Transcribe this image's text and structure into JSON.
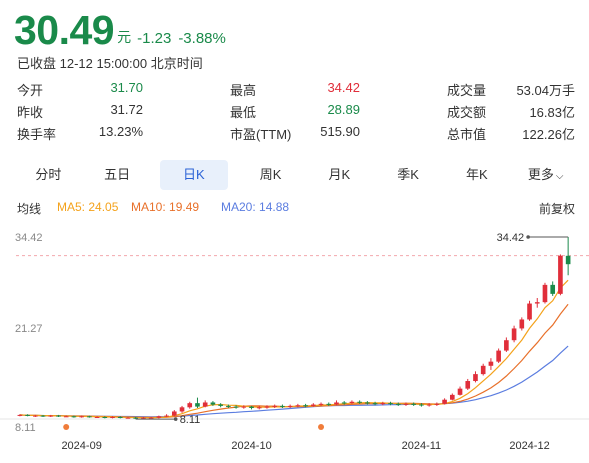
{
  "quote": {
    "price": "30.49",
    "unit": "元",
    "change": "-1.23",
    "change_pct": "-3.88%",
    "status": "已收盘 12-12 15:00:00 北京时间"
  },
  "stats": [
    [
      {
        "label": "今开",
        "value": "31.70",
        "tone": "down"
      },
      {
        "label": "最高",
        "value": "34.42",
        "tone": "up"
      },
      {
        "label": "成交量",
        "value": "53.04万手",
        "tone": "neutral"
      }
    ],
    [
      {
        "label": "昨收",
        "value": "31.72",
        "tone": "neutral"
      },
      {
        "label": "最低",
        "value": "28.89",
        "tone": "down"
      },
      {
        "label": "成交额",
        "value": "16.83亿",
        "tone": "neutral"
      }
    ],
    [
      {
        "label": "换手率",
        "value": "13.23%",
        "tone": "neutral"
      },
      {
        "label": "市盈(TTM)",
        "value": "515.90",
        "tone": "neutral"
      },
      {
        "label": "总市值",
        "value": "122.26亿",
        "tone": "neutral"
      }
    ]
  ],
  "tabs": [
    {
      "label": "分时",
      "active": false
    },
    {
      "label": "五日",
      "active": false
    },
    {
      "label": "日K",
      "active": true
    },
    {
      "label": "周K",
      "active": false
    },
    {
      "label": "月K",
      "active": false
    },
    {
      "label": "季K",
      "active": false
    },
    {
      "label": "年K",
      "active": false
    },
    {
      "label": "更多",
      "active": false,
      "caret": "⌵"
    }
  ],
  "legend": {
    "title": "均线",
    "ma5": "MA5: 24.05",
    "ma10": "MA10: 19.49",
    "ma20": "MA20: 14.88",
    "adjust": "前复权"
  },
  "colors": {
    "up": "#e02e3a",
    "down": "#1a8a4a",
    "ma5": "#f4a21b",
    "ma10": "#e8702a",
    "ma20": "#5b7de0"
  },
  "chart_data": {
    "type": "candlestick",
    "y_ticks": [
      "34.42",
      "21.27",
      "8.11"
    ],
    "ylim": [
      8.11,
      34.42
    ],
    "x_ticks": [
      "2024-09",
      "2024-10",
      "2024-11",
      "2024-12"
    ],
    "annotations": {
      "high": "34.42",
      "low": "8.11"
    },
    "candles": [
      [
        8.6,
        8.7,
        8.5,
        8.8
      ],
      [
        8.7,
        8.6,
        8.5,
        8.8
      ],
      [
        8.6,
        8.6,
        8.4,
        8.7
      ],
      [
        8.6,
        8.5,
        8.4,
        8.7
      ],
      [
        8.5,
        8.6,
        8.4,
        8.7
      ],
      [
        8.6,
        8.5,
        8.4,
        8.7
      ],
      [
        8.5,
        8.5,
        8.4,
        8.6
      ],
      [
        8.5,
        8.4,
        8.3,
        8.6
      ],
      [
        8.4,
        8.5,
        8.3,
        8.6
      ],
      [
        8.5,
        8.4,
        8.3,
        8.6
      ],
      [
        8.4,
        8.4,
        8.3,
        8.5
      ],
      [
        8.4,
        8.3,
        8.2,
        8.5
      ],
      [
        8.3,
        8.4,
        8.2,
        8.5
      ],
      [
        8.4,
        8.3,
        8.2,
        8.5
      ],
      [
        8.3,
        8.3,
        8.2,
        8.4
      ],
      [
        8.3,
        8.2,
        8.1,
        8.4
      ],
      [
        8.2,
        8.3,
        8.11,
        8.4
      ],
      [
        8.3,
        8.3,
        8.2,
        8.4
      ],
      [
        8.3,
        8.5,
        8.2,
        8.6
      ],
      [
        8.5,
        8.6,
        8.4,
        8.8
      ],
      [
        8.6,
        9.2,
        8.5,
        9.4
      ],
      [
        9.2,
        9.8,
        9.0,
        10.0
      ],
      [
        9.8,
        10.4,
        9.6,
        10.6
      ],
      [
        10.4,
        9.9,
        9.7,
        11.2
      ],
      [
        9.9,
        10.5,
        9.8,
        10.8
      ],
      [
        10.5,
        10.2,
        10.0,
        10.7
      ],
      [
        10.2,
        10.0,
        9.8,
        10.4
      ],
      [
        10.0,
        9.9,
        9.7,
        10.2
      ],
      [
        9.9,
        9.8,
        9.6,
        10.1
      ],
      [
        9.8,
        9.9,
        9.6,
        10.1
      ],
      [
        9.9,
        9.7,
        9.5,
        10.0
      ],
      [
        9.7,
        9.8,
        9.5,
        10.0
      ],
      [
        9.8,
        9.9,
        9.6,
        10.1
      ],
      [
        9.9,
        10.0,
        9.7,
        10.2
      ],
      [
        10.0,
        9.9,
        9.7,
        10.2
      ],
      [
        9.9,
        10.0,
        9.7,
        10.2
      ],
      [
        10.0,
        10.1,
        9.8,
        10.3
      ],
      [
        10.1,
        10.0,
        9.8,
        10.3
      ],
      [
        10.0,
        10.2,
        9.9,
        10.4
      ],
      [
        10.2,
        10.3,
        10.0,
        10.5
      ],
      [
        10.3,
        10.2,
        10.0,
        10.5
      ],
      [
        10.2,
        10.5,
        10.1,
        10.8
      ],
      [
        10.5,
        10.4,
        10.2,
        10.7
      ],
      [
        10.4,
        10.6,
        10.3,
        10.8
      ],
      [
        10.6,
        10.5,
        10.3,
        10.8
      ],
      [
        10.5,
        10.4,
        10.2,
        10.7
      ],
      [
        10.4,
        10.3,
        10.1,
        10.6
      ],
      [
        10.3,
        10.4,
        10.1,
        10.6
      ],
      [
        10.4,
        10.3,
        10.1,
        10.6
      ],
      [
        10.3,
        10.2,
        10.0,
        10.5
      ],
      [
        10.2,
        10.3,
        10.0,
        10.5
      ],
      [
        10.3,
        10.2,
        10.0,
        10.5
      ],
      [
        10.2,
        10.1,
        9.9,
        10.4
      ],
      [
        10.1,
        10.2,
        9.9,
        10.4
      ],
      [
        10.2,
        10.3,
        10.0,
        10.5
      ],
      [
        10.3,
        10.9,
        10.2,
        11.1
      ],
      [
        10.9,
        11.6,
        10.8,
        11.8
      ],
      [
        11.6,
        12.5,
        11.5,
        12.8
      ],
      [
        12.5,
        13.6,
        12.3,
        13.9
      ],
      [
        13.6,
        14.6,
        13.4,
        15.0
      ],
      [
        14.6,
        15.8,
        14.4,
        16.1
      ],
      [
        15.8,
        16.4,
        15.2,
        16.9
      ],
      [
        16.4,
        18.0,
        16.2,
        18.3
      ],
      [
        18.0,
        19.5,
        17.8,
        19.9
      ],
      [
        19.5,
        21.2,
        19.2,
        21.6
      ],
      [
        21.2,
        22.5,
        20.9,
        22.8
      ],
      [
        22.5,
        24.8,
        22.3,
        25.2
      ],
      [
        24.8,
        25.0,
        24.2,
        25.6
      ],
      [
        25.0,
        27.5,
        24.8,
        27.8
      ],
      [
        27.5,
        26.2,
        25.9,
        28.0
      ],
      [
        26.2,
        31.72,
        26.0,
        31.9
      ],
      [
        31.7,
        30.49,
        28.89,
        34.42
      ]
    ]
  }
}
